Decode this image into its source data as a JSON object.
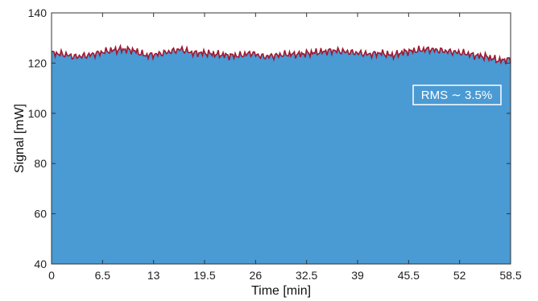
{
  "chart_data": {
    "type": "area",
    "title": "",
    "xlabel": "Time [min]",
    "ylabel": "Signal [mW]",
    "xlim": [
      0,
      58.5
    ],
    "ylim": [
      40,
      140
    ],
    "xticks": [
      0,
      6.5,
      13,
      19.5,
      26,
      32.5,
      39,
      45.5,
      52,
      58.5
    ],
    "xtick_labels": [
      "0",
      "6.5",
      "13",
      "19.5",
      "26",
      "32.5",
      "39",
      "45.5",
      "52",
      "58.5"
    ],
    "yticks": [
      40,
      60,
      80,
      100,
      120,
      140
    ],
    "ytick_labels": [
      "40",
      "60",
      "80",
      "100",
      "120",
      "140"
    ],
    "grid": false,
    "colors": {
      "fill": "#4a9ad4",
      "line": "#a01830",
      "annotation_border": "#ffffff"
    },
    "annotation": "RMS ∼ 3.5%",
    "series": [
      {
        "x": [
          0,
          1.5,
          3,
          4.5,
          6,
          7.5,
          9,
          10.5,
          12,
          13.5,
          15,
          16.5,
          18,
          19.5,
          21,
          22.5,
          24,
          25.5,
          27,
          28.5,
          30,
          31.5,
          33,
          34.5,
          36,
          37.5,
          39,
          40.5,
          42,
          43.5,
          45,
          46.5,
          48,
          49.5,
          51,
          52.5,
          54,
          55.5,
          57,
          58.5
        ],
        "y": [
          124,
          123.5,
          122.5,
          123,
          124,
          125,
          125.5,
          125,
          123,
          123.5,
          124.5,
          125.5,
          124,
          124,
          123.5,
          123,
          123,
          124,
          122.5,
          123,
          123.5,
          123.5,
          124,
          124.5,
          125,
          124.5,
          124,
          123.5,
          124,
          123,
          124.5,
          125,
          125.5,
          125,
          124.5,
          124,
          123,
          122.5,
          121,
          121.5
        ]
      }
    ]
  }
}
